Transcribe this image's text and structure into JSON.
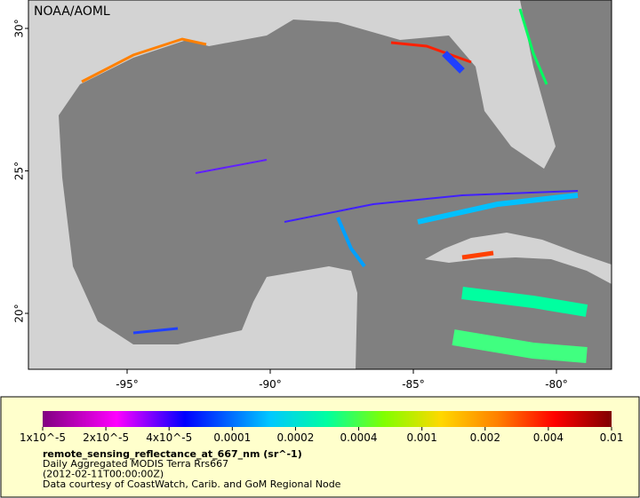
{
  "header": {
    "credit": "NOAA/AOML"
  },
  "map": {
    "lat_labels": [
      "30°",
      "25°",
      "20°"
    ],
    "lon_labels": [
      "-95°",
      "-90°",
      "-85°",
      "-80°"
    ]
  },
  "colorbar": {
    "labels": [
      "1x10^-5",
      "2x10^-5",
      "4x10^-5",
      "0.0001",
      "0.0002",
      "0.0004",
      "0.001",
      "0.002",
      "0.004",
      "0.01"
    ]
  },
  "caption": {
    "variable": "remote_sensing_reflectance_at_667_nm (sr^-1)",
    "lines": [
      "Daily Aggregated MODIS Terra Rrs667",
      "(2012-02-11T00:00:00Z)",
      "Data courtesy of CoastWatch, Carib. and GoM Regional Node"
    ]
  }
}
